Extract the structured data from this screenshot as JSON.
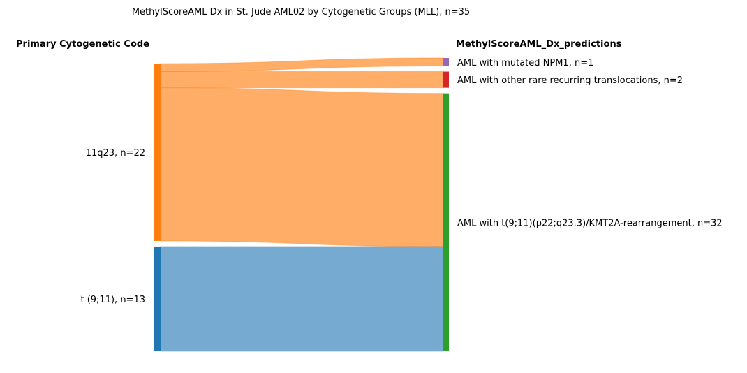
{
  "chart_data": {
    "type": "sankey",
    "title": "MethylScoreAML Dx in St. Jude AML02 by Cytogenetic Groups (MLL), n=35",
    "left_header": "Primary Cytogenetic Code",
    "right_header": "MethylScoreAML_Dx_predictions",
    "sources": [
      {
        "id": "11q23",
        "label": "11q23, n=22",
        "value": 22,
        "color": "#ff7f0e",
        "flow_color": "#ffa95f"
      },
      {
        "id": "t911",
        "label": "t (9;11), n=13",
        "value": 13,
        "color": "#1f77b4",
        "flow_color": "#6fa6ce"
      }
    ],
    "targets": [
      {
        "id": "npm1",
        "label": "AML with mutated NPM1, n=1",
        "value": 1,
        "color": "#9467bd"
      },
      {
        "id": "rare",
        "label": "AML with other rare recurring translocations, n=2",
        "value": 2,
        "color": "#d62728"
      },
      {
        "id": "kmt2a",
        "label": "AML with t(9;11)(p22;q23.3)/KMT2A-rearrangement, n=32",
        "value": 32,
        "color": "#2ca02c"
      }
    ],
    "flows": [
      {
        "source": "11q23",
        "target": "npm1",
        "value": 1
      },
      {
        "source": "11q23",
        "target": "rare",
        "value": 2
      },
      {
        "source": "11q23",
        "target": "kmt2a",
        "value": 19
      },
      {
        "source": "t911",
        "target": "kmt2a",
        "value": 13
      }
    ]
  }
}
